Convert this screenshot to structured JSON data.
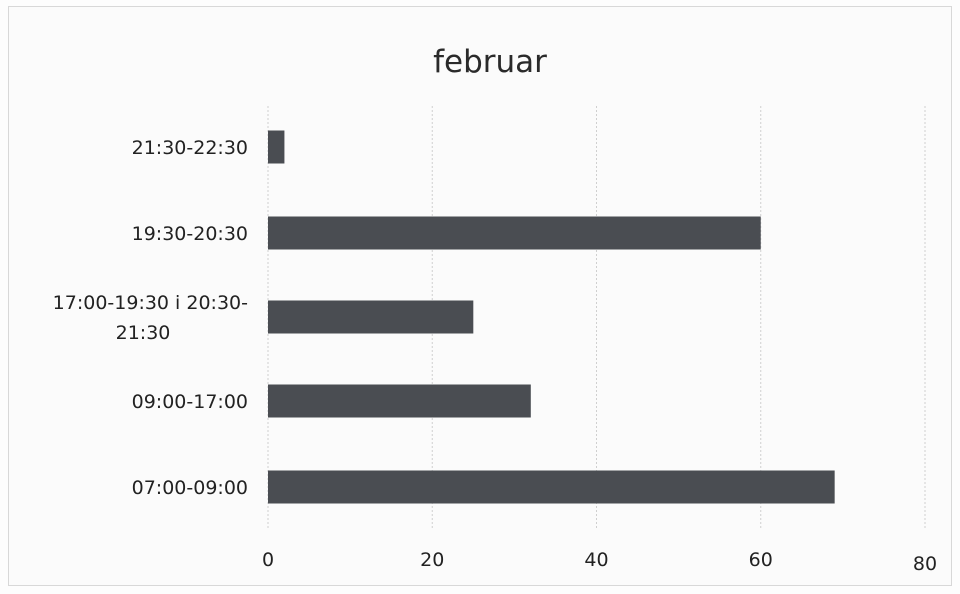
{
  "chart_data": {
    "type": "bar",
    "orientation": "horizontal",
    "title": "februar",
    "xlabel": "",
    "ylabel": "",
    "categories": [
      "21:30-22:30",
      "19:30-20:30",
      "17:00-19:30 i 20:30-21:30",
      "09:00-17:00",
      "07:00-09:00"
    ],
    "category_label_lines": [
      [
        "21:30-22:30"
      ],
      [
        "19:30-20:30"
      ],
      [
        "17:00-19:30 i 20:30-",
        "21:30"
      ],
      [
        "09:00-17:00"
      ],
      [
        "07:00-09:00"
      ]
    ],
    "values": [
      2,
      60,
      25,
      32,
      69
    ],
    "xlim": [
      0,
      80
    ],
    "x_ticks": [
      "0",
      "20",
      "40",
      "60",
      "80"
    ],
    "grid": "vertical",
    "legend": "none",
    "bar_color": "#4a4d52"
  }
}
